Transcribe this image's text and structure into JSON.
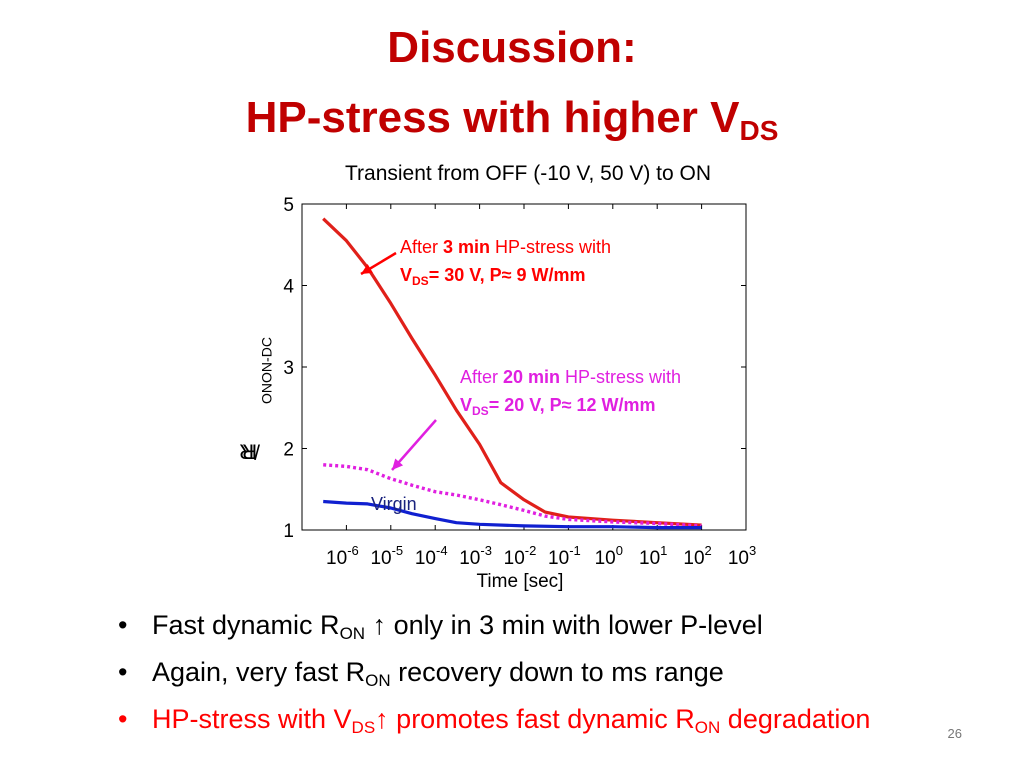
{
  "slide": {
    "title_line1": "Discussion:",
    "title_line2": "HP-stress with higher V",
    "title_line2_sub": "DS",
    "page_number": "26"
  },
  "chart_data": {
    "type": "line",
    "title": "Transient from OFF (-10 V, 50 V) to ON",
    "xlabel": "Time [sec]",
    "ylabel_main": "R",
    "ylabel_sub1": "ON",
    "ylabel_mid": "/R",
    "ylabel_sub2": "ON-DC",
    "x_scale": "log",
    "xlim": [
      1e-07,
      1000.0
    ],
    "ylim": [
      1,
      5
    ],
    "yticks": [
      "1",
      "2",
      "3",
      "4",
      "5"
    ],
    "xtick_base": "10",
    "xtick_exps": [
      "-6",
      "-5",
      "-4",
      "-3",
      "-2",
      "-1",
      "0",
      "1",
      "2",
      "3"
    ],
    "series": [
      {
        "name": "After 3 min HP-stress with VDS= 30 V, P≈ 9 W/mm",
        "style": "solid",
        "color": "#e0201a",
        "x": [
          3e-07,
          1e-06,
          3e-06,
          1e-05,
          3e-05,
          0.0001,
          0.0003,
          0.001,
          0.003,
          0.01,
          0.03,
          0.1,
          1,
          10,
          100
        ],
        "y": [
          4.82,
          4.55,
          4.22,
          3.78,
          3.35,
          2.9,
          2.47,
          2.05,
          1.58,
          1.37,
          1.22,
          1.16,
          1.12,
          1.09,
          1.06
        ]
      },
      {
        "name": "After 20 min HP-stress with VDS= 20 V, P≈ 12 W/mm",
        "style": "dotted",
        "color": "#e020e0",
        "x": [
          3e-07,
          1e-06,
          3e-06,
          1e-05,
          3e-05,
          0.0001,
          0.0003,
          0.001,
          0.003,
          0.01,
          0.03,
          0.1,
          1,
          10,
          100
        ],
        "y": [
          1.8,
          1.78,
          1.74,
          1.63,
          1.55,
          1.47,
          1.43,
          1.37,
          1.31,
          1.24,
          1.17,
          1.13,
          1.1,
          1.08,
          1.05
        ]
      },
      {
        "name": "Virgin",
        "style": "solid",
        "color": "#1020d0",
        "x": [
          3e-07,
          1e-06,
          3e-06,
          1e-05,
          3e-05,
          0.0001,
          0.0003,
          0.001,
          0.01,
          0.1,
          1,
          10,
          100
        ],
        "y": [
          1.35,
          1.33,
          1.32,
          1.27,
          1.2,
          1.14,
          1.09,
          1.07,
          1.05,
          1.04,
          1.04,
          1.03,
          1.03
        ]
      }
    ]
  },
  "annotations": {
    "red_pre": "After ",
    "red_bold": "3 min",
    "red_post": " HP-stress with",
    "red_line2_v": "V",
    "red_line2_sub": "DS",
    "red_line2_rest": "= 30 V, P≈ 9 W/mm",
    "mag_pre": "After ",
    "mag_bold": "20 min",
    "mag_post": " HP-stress with",
    "mag_line2_v": "V",
    "mag_line2_sub": "DS",
    "mag_line2_rest": "= 20 V, P≈ 12 W/mm",
    "virgin": "Virgin"
  },
  "bullets": [
    {
      "pre": "Fast dynamic R",
      "sub": "ON",
      "post": " ↑ only in 3 min with lower P-level",
      "color": "black"
    },
    {
      "pre": "Again, very fast R",
      "sub": "ON",
      "post": " recovery down to ms range",
      "color": "black"
    },
    {
      "pre": "HP-stress with V",
      "sub": "DS",
      "mid": "↑ promotes fast dynamic R",
      "sub2": "ON",
      "post": " degradation",
      "color": "red"
    }
  ],
  "bullet_symbol": "•"
}
